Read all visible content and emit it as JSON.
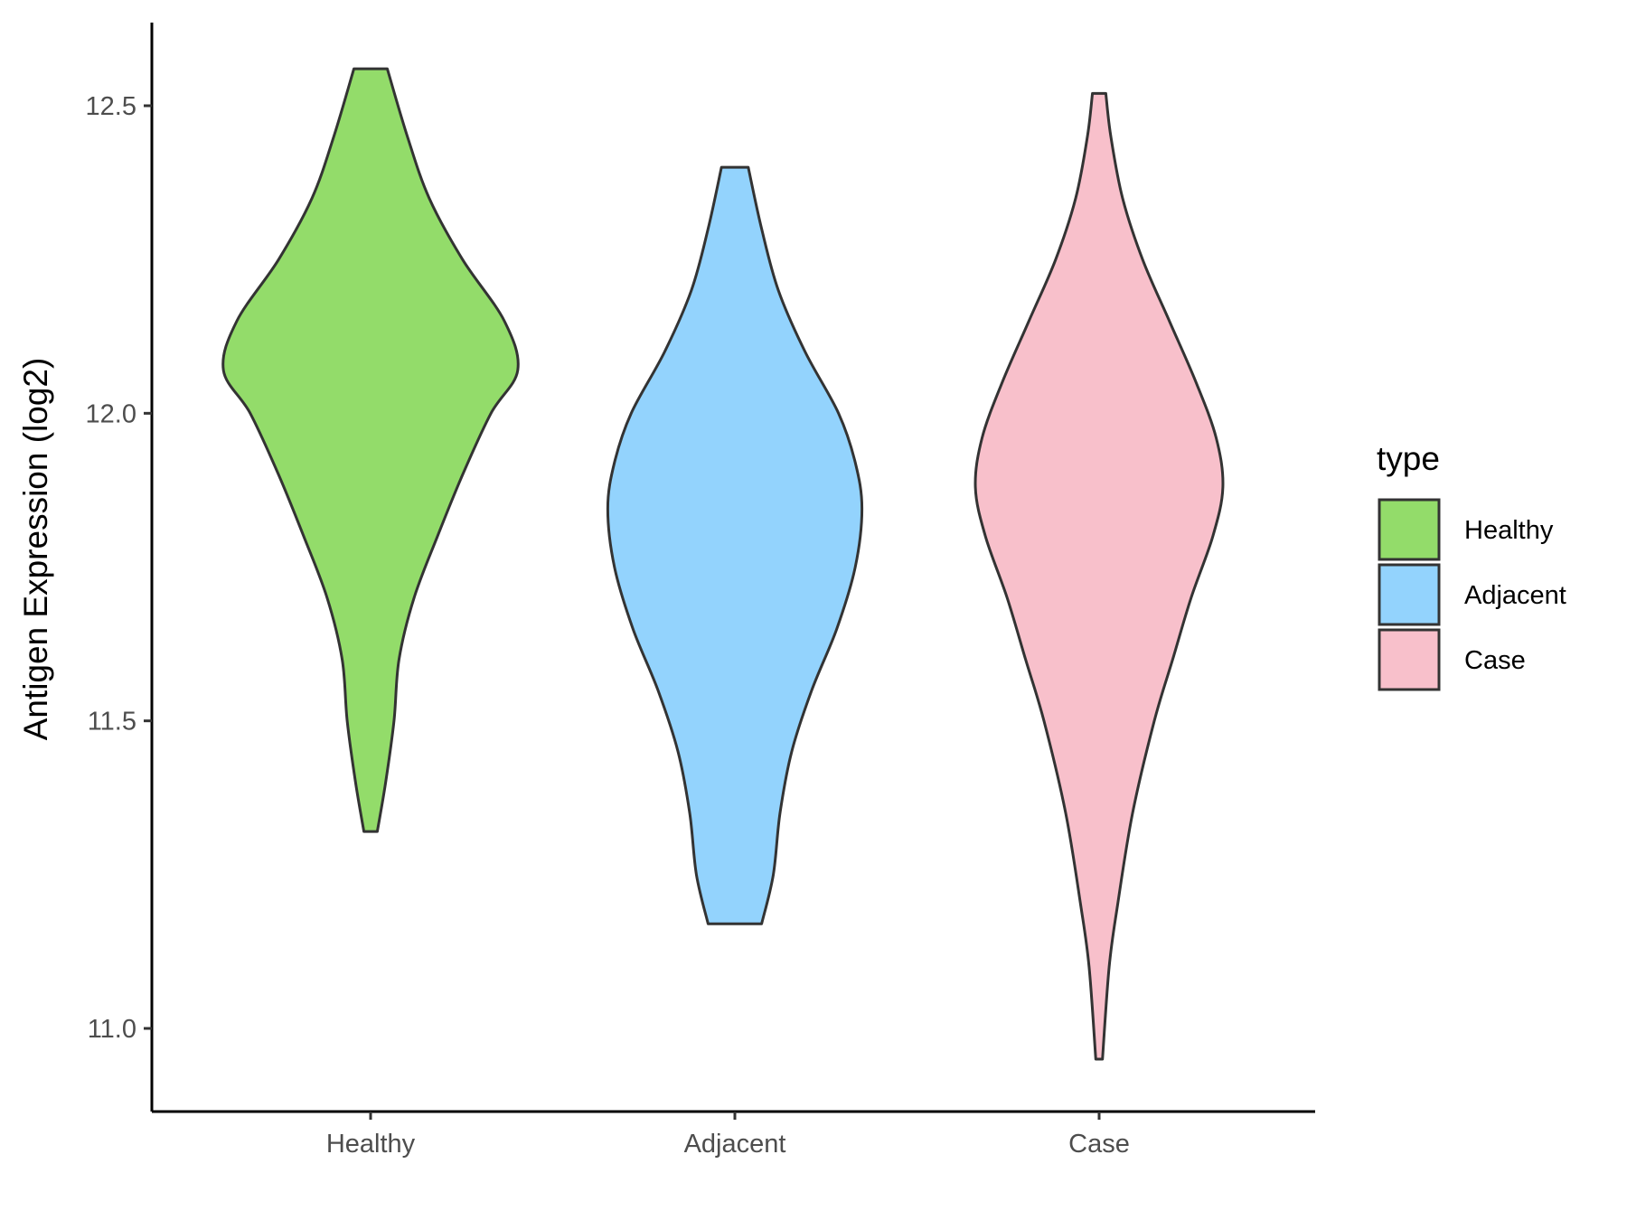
{
  "chart_data": {
    "type": "violin",
    "title": "",
    "xlabel": "",
    "ylabel": "Antigen Expression (log2)",
    "ylim": [
      10.9,
      12.63
    ],
    "yticks": [
      11.0,
      11.5,
      12.0,
      12.5
    ],
    "ytick_labels": [
      "11.0",
      "11.5",
      "12.0",
      "12.5"
    ],
    "grid": false,
    "categories": [
      "Healthy",
      "Adjacent",
      "Case"
    ],
    "legend": {
      "title": "type",
      "placement": "right",
      "entries": [
        "Healthy",
        "Adjacent",
        "Case"
      ]
    },
    "series": [
      {
        "category": "Healthy",
        "color": "#93DC6A",
        "range": [
          11.32,
          12.56
        ],
        "profile": [
          [
            11.32,
            0.04
          ],
          [
            11.4,
            0.09
          ],
          [
            11.5,
            0.14
          ],
          [
            11.6,
            0.17
          ],
          [
            11.7,
            0.26
          ],
          [
            11.8,
            0.4
          ],
          [
            11.9,
            0.55
          ],
          [
            12.0,
            0.72
          ],
          [
            12.07,
            0.88
          ],
          [
            12.15,
            0.8
          ],
          [
            12.25,
            0.55
          ],
          [
            12.35,
            0.35
          ],
          [
            12.45,
            0.22
          ],
          [
            12.56,
            0.1
          ]
        ]
      },
      {
        "category": "Adjacent",
        "color": "#93D3FD",
        "range": [
          11.17,
          12.4
        ],
        "profile": [
          [
            11.17,
            0.16
          ],
          [
            11.25,
            0.23
          ],
          [
            11.35,
            0.27
          ],
          [
            11.45,
            0.34
          ],
          [
            11.55,
            0.46
          ],
          [
            11.65,
            0.61
          ],
          [
            11.75,
            0.72
          ],
          [
            11.845,
            0.76
          ],
          [
            11.92,
            0.72
          ],
          [
            12.0,
            0.62
          ],
          [
            12.1,
            0.42
          ],
          [
            12.2,
            0.26
          ],
          [
            12.3,
            0.16
          ],
          [
            12.4,
            0.08
          ]
        ]
      },
      {
        "category": "Case",
        "color": "#F8C0CB",
        "range": [
          10.95,
          12.52
        ],
        "profile": [
          [
            10.95,
            0.02
          ],
          [
            11.1,
            0.06
          ],
          [
            11.2,
            0.11
          ],
          [
            11.35,
            0.2
          ],
          [
            11.5,
            0.33
          ],
          [
            11.6,
            0.44
          ],
          [
            11.7,
            0.55
          ],
          [
            11.8,
            0.68
          ],
          [
            11.88,
            0.74
          ],
          [
            11.96,
            0.7
          ],
          [
            12.05,
            0.58
          ],
          [
            12.15,
            0.42
          ],
          [
            12.25,
            0.26
          ],
          [
            12.35,
            0.14
          ],
          [
            12.45,
            0.07
          ],
          [
            12.52,
            0.04
          ]
        ]
      }
    ]
  }
}
